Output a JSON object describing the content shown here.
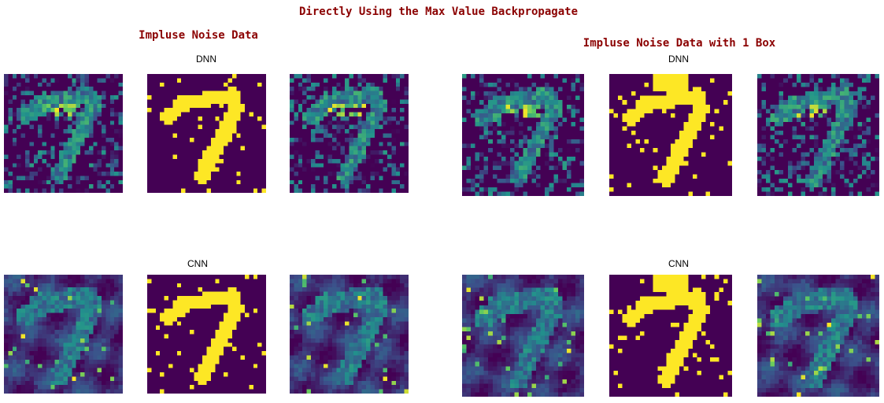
{
  "title": "Directly Using the Max Value Backpropagate",
  "left_group": {
    "title": "Impluse Noise Data",
    "rows": [
      {
        "label": "DNN"
      },
      {
        "label": "CNN"
      }
    ]
  },
  "right_group": {
    "title": "Impluse Noise Data with 1 Box",
    "rows": [
      {
        "label": "DNN"
      },
      {
        "label": "CNN"
      }
    ]
  },
  "colors": {
    "viridis_low": "#440154",
    "viridis_mid": "#21918c",
    "viridis_high": "#fde725",
    "title_color": "#8b0000"
  }
}
